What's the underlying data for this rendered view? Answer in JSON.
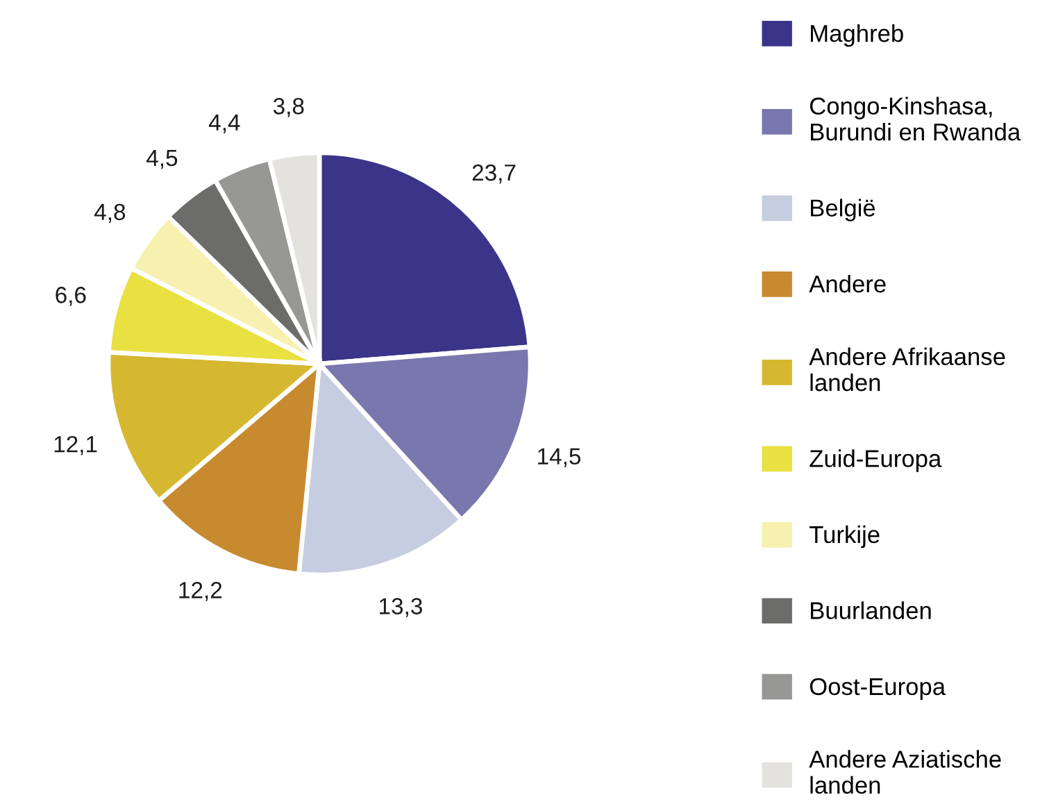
{
  "chart_data": {
    "type": "pie",
    "categories": [
      "Maghreb",
      "Congo-Kinshasa,\nBurundi en Rwanda",
      "België",
      "Andere",
      "Andere Afrikaanse\nlanden",
      "Zuid-Europa",
      "Turkije",
      "Buurlanden",
      "Oost-Europa",
      "Andere Aziatische\nlanden"
    ],
    "values": [
      23.7,
      14.5,
      13.3,
      12.2,
      12.1,
      6.6,
      4.8,
      4.5,
      4.4,
      3.8
    ],
    "value_labels": [
      "23,7",
      "14,5",
      "13,3",
      "12,2",
      "12,1",
      "6,6",
      "4,8",
      "4,5",
      "4,4",
      "3,8"
    ],
    "colors": [
      "#3a3588",
      "#7878ae",
      "#c7cde0",
      "#c78a2e",
      "#d6b830",
      "#e9e042",
      "#f7f1b0",
      "#6c6c6b",
      "#979795",
      "#e3e2df"
    ],
    "legend": "right"
  }
}
